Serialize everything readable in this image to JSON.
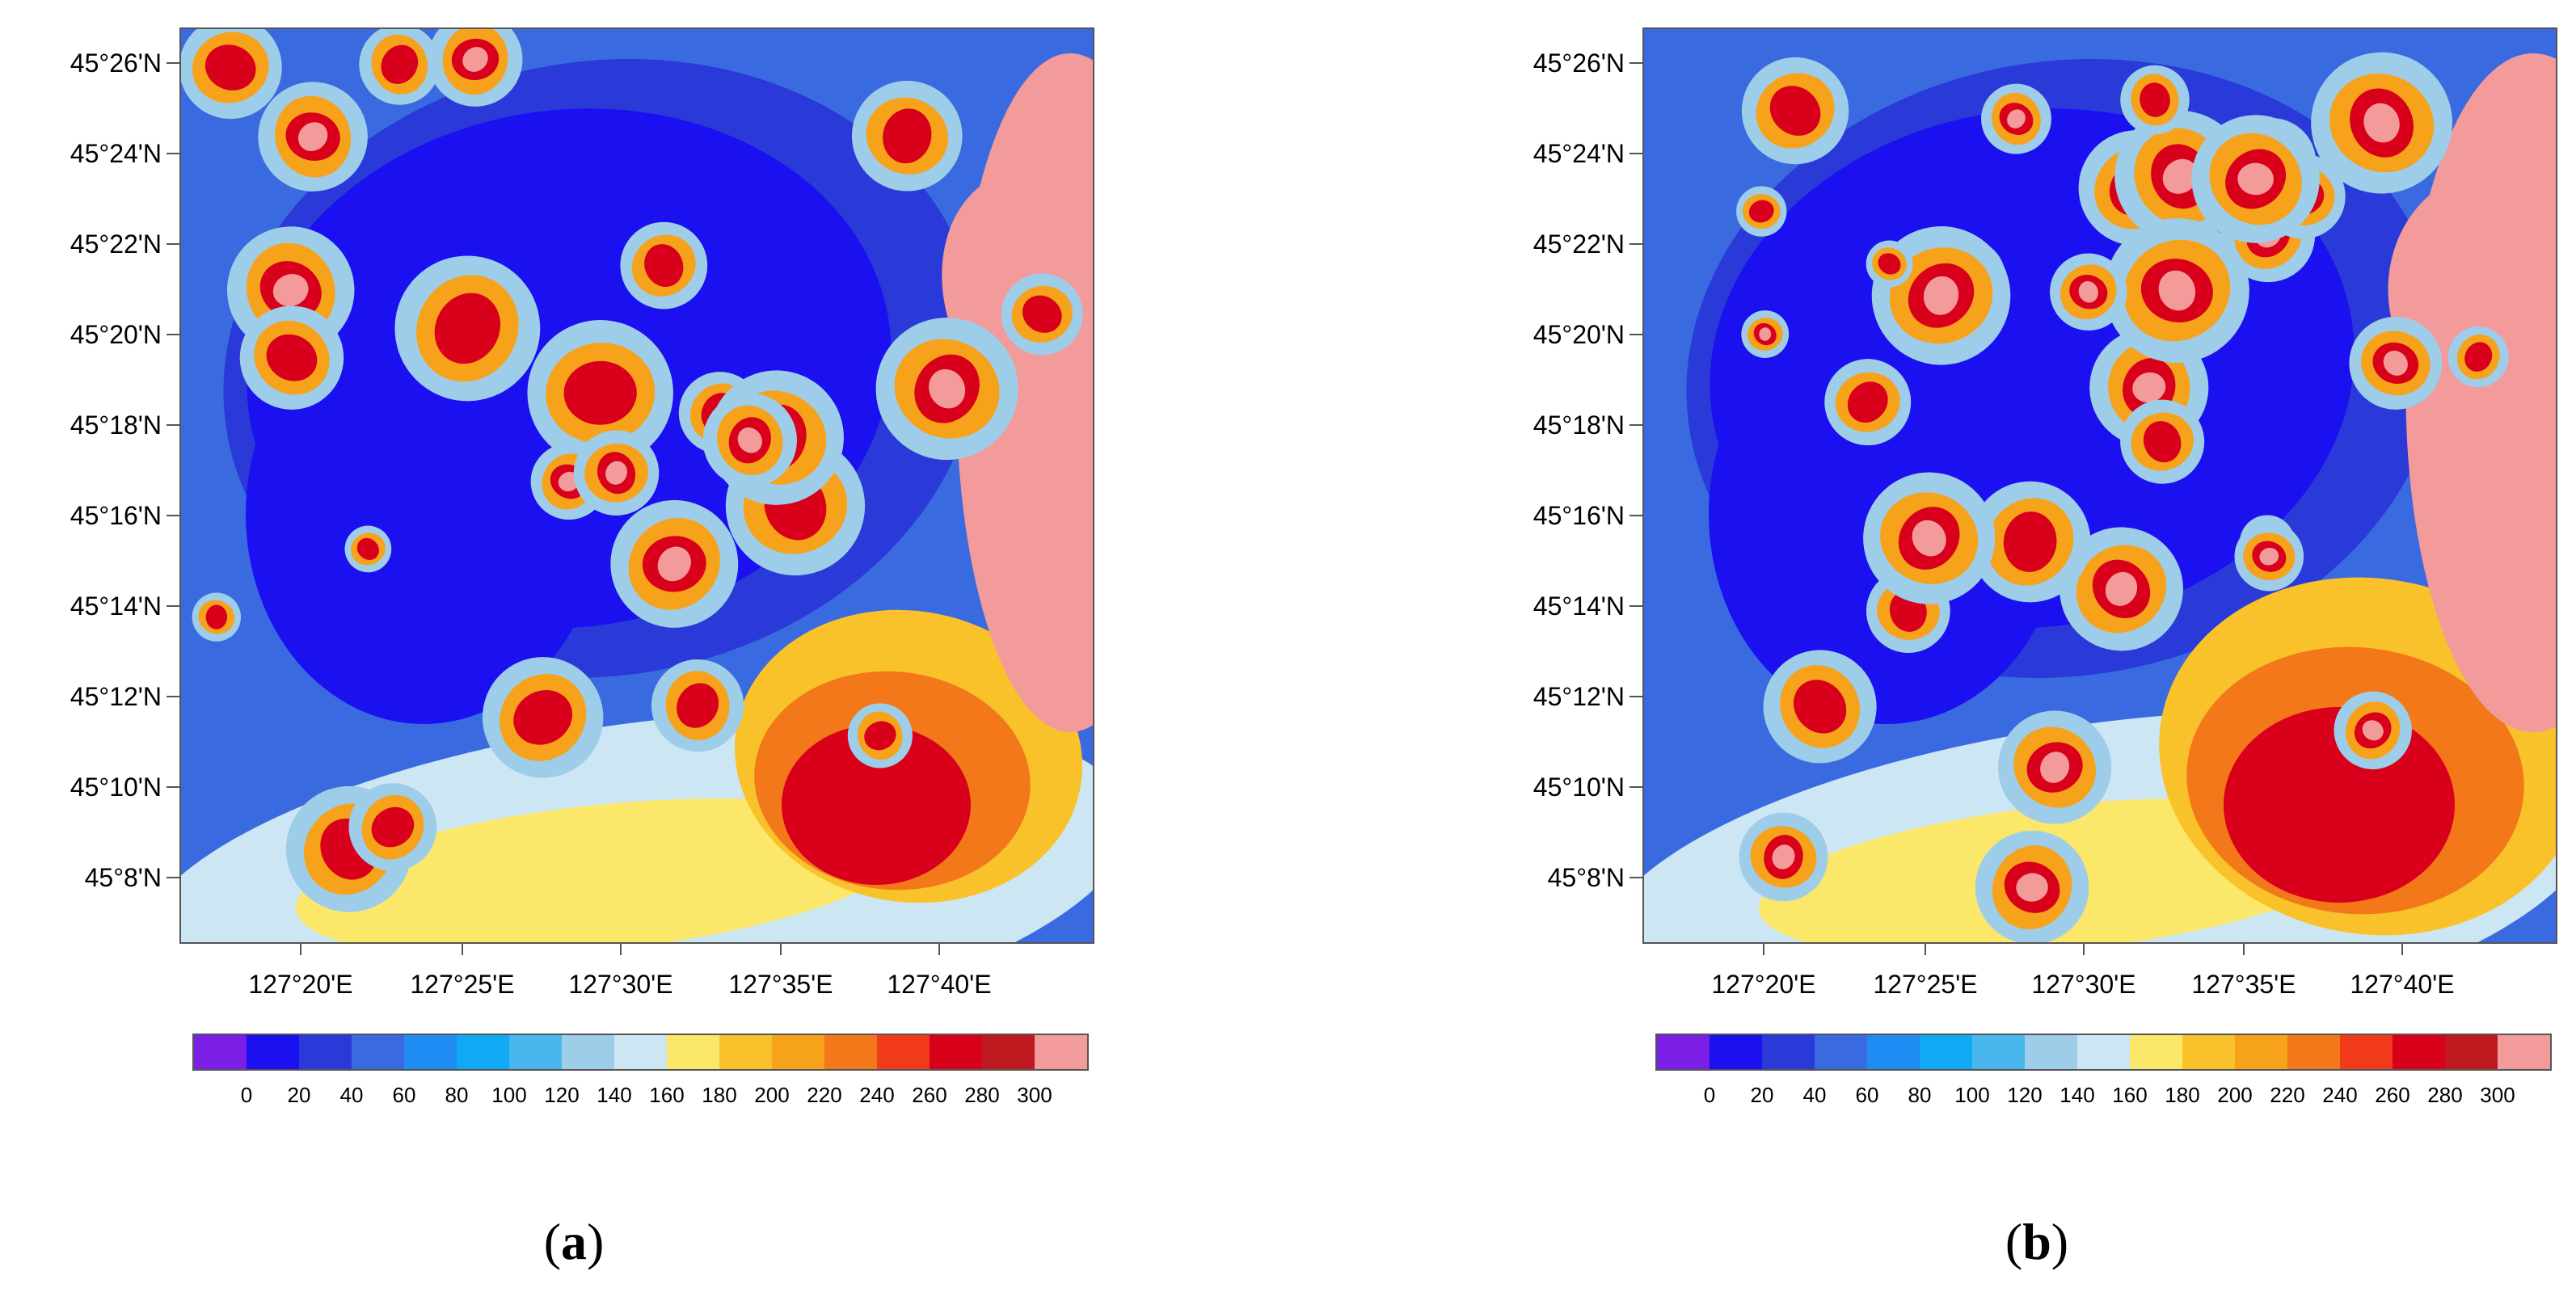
{
  "panels": [
    {
      "caption_open": "(",
      "caption_letter": "a",
      "caption_close": ")",
      "high_fraction": 0.22
    },
    {
      "caption_open": "(",
      "caption_letter": "b",
      "caption_close": ")",
      "high_fraction": 0.34
    }
  ],
  "lat_labels": [
    "45°26'N",
    "45°24'N",
    "45°22'N",
    "45°20'N",
    "45°18'N",
    "45°16'N",
    "45°14'N",
    "45°12'N",
    "45°10'N",
    "45°8'N"
  ],
  "lon_labels": [
    "127°20'E",
    "127°25'E",
    "127°30'E",
    "127°35'E",
    "127°40'E"
  ],
  "colorbar": {
    "colors": [
      "#7b1fe6",
      "#1a10f0",
      "#2a3ad8",
      "#3a6ae0",
      "#1e8cf2",
      "#10aaf4",
      "#4ab6ee",
      "#9ecdea",
      "#cde6f4",
      "#fbe86a",
      "#f9c22a",
      "#f6a21a",
      "#f3781a",
      "#f03a1a",
      "#d8001a",
      "#be1a20",
      "#f39a9a"
    ],
    "labels": [
      "0",
      "20",
      "40",
      "60",
      "80",
      "100",
      "120",
      "140",
      "160",
      "180",
      "200",
      "220",
      "240",
      "260",
      "280",
      "300"
    ]
  }
}
